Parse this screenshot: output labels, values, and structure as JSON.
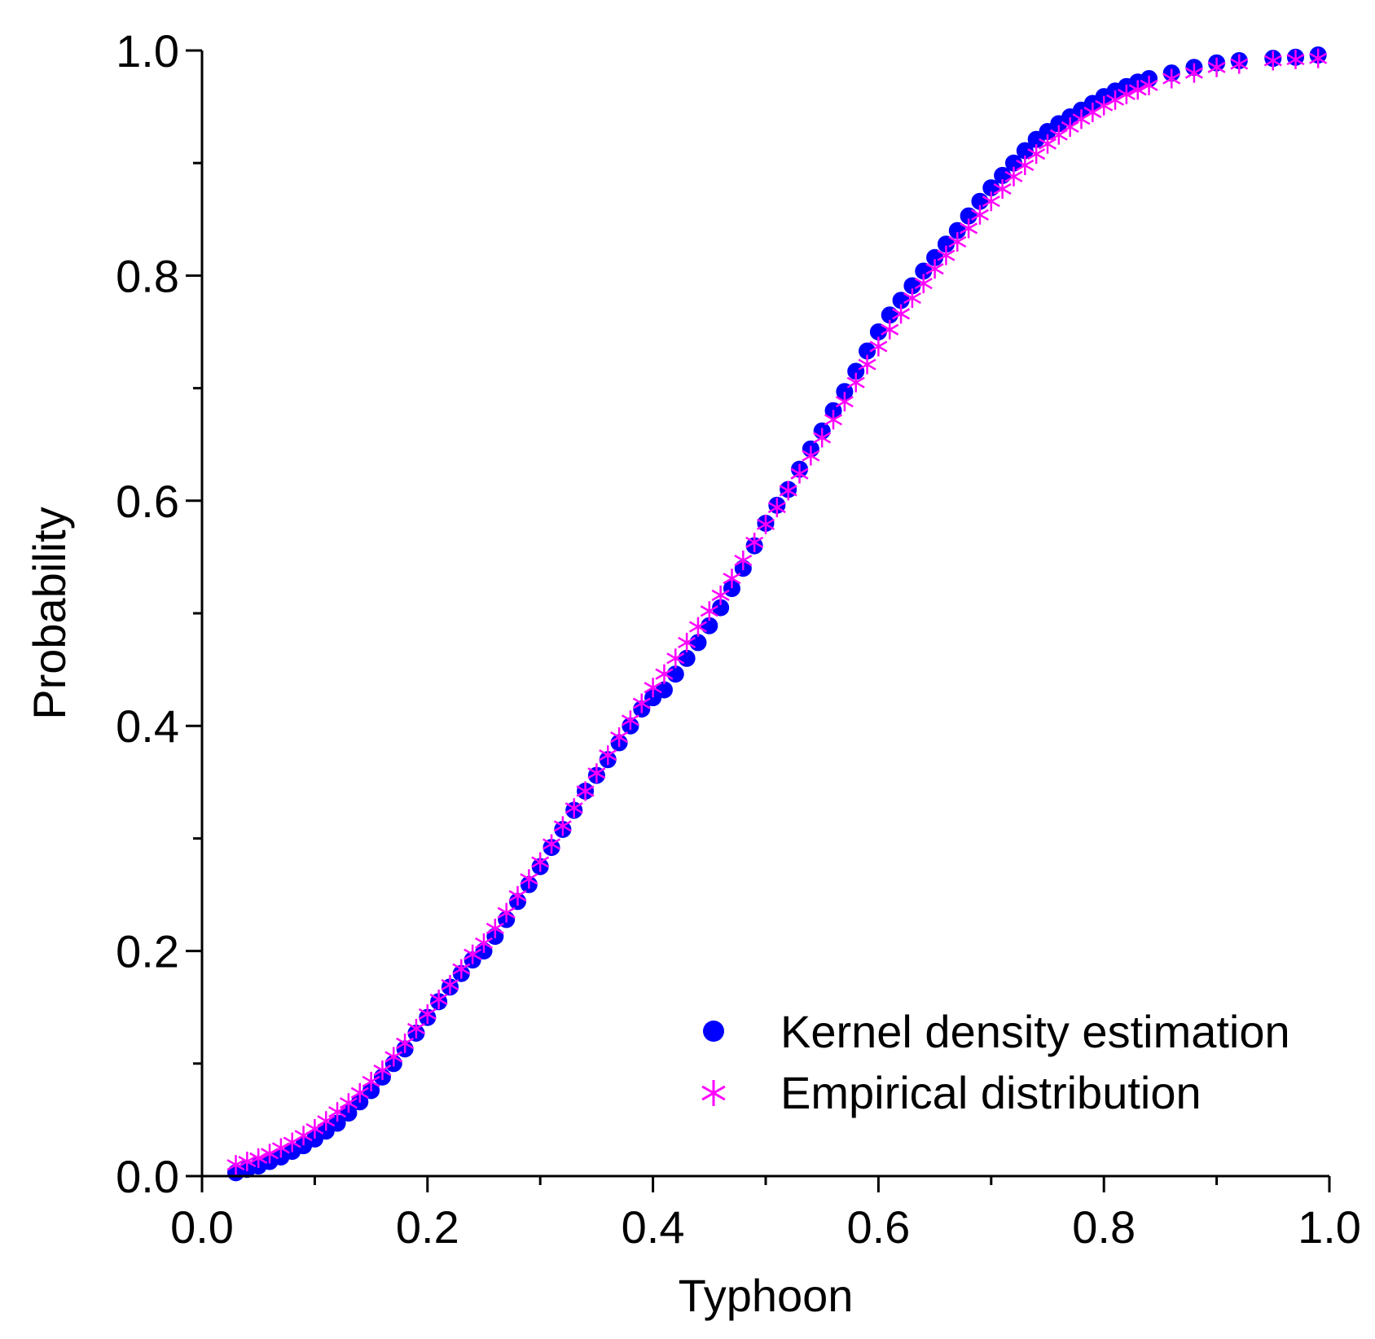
{
  "chart_data": {
    "type": "scatter",
    "title": "",
    "xlabel": "Typhoon",
    "ylabel": "Probability",
    "xlim": [
      0.0,
      1.0
    ],
    "ylim": [
      0.0,
      1.0
    ],
    "xticks": [
      "0.0",
      "0.2",
      "0.4",
      "0.6",
      "0.8",
      "1.0"
    ],
    "yticks": [
      "0.0",
      "0.2",
      "0.4",
      "0.6",
      "0.8",
      "1.0"
    ],
    "grid": false,
    "legend_position": "bottom-right",
    "series": [
      {
        "name": "Kernel density estimation",
        "marker": "circle",
        "color": "#0000ff",
        "points": [
          [
            0.03,
            0.003
          ],
          [
            0.04,
            0.006
          ],
          [
            0.05,
            0.009
          ],
          [
            0.06,
            0.013
          ],
          [
            0.07,
            0.017
          ],
          [
            0.08,
            0.022
          ],
          [
            0.09,
            0.027
          ],
          [
            0.1,
            0.033
          ],
          [
            0.11,
            0.04
          ],
          [
            0.12,
            0.047
          ],
          [
            0.13,
            0.056
          ],
          [
            0.14,
            0.066
          ],
          [
            0.15,
            0.076
          ],
          [
            0.16,
            0.088
          ],
          [
            0.17,
            0.1
          ],
          [
            0.18,
            0.113
          ],
          [
            0.19,
            0.127
          ],
          [
            0.2,
            0.141
          ],
          [
            0.21,
            0.155
          ],
          [
            0.22,
            0.168
          ],
          [
            0.23,
            0.18
          ],
          [
            0.24,
            0.192
          ],
          [
            0.25,
            0.2
          ],
          [
            0.26,
            0.213
          ],
          [
            0.27,
            0.228
          ],
          [
            0.28,
            0.244
          ],
          [
            0.29,
            0.259
          ],
          [
            0.3,
            0.275
          ],
          [
            0.31,
            0.292
          ],
          [
            0.32,
            0.308
          ],
          [
            0.33,
            0.325
          ],
          [
            0.34,
            0.342
          ],
          [
            0.35,
            0.356
          ],
          [
            0.36,
            0.37
          ],
          [
            0.37,
            0.385
          ],
          [
            0.38,
            0.4
          ],
          [
            0.39,
            0.415
          ],
          [
            0.4,
            0.425
          ],
          [
            0.41,
            0.432
          ],
          [
            0.42,
            0.446
          ],
          [
            0.43,
            0.46
          ],
          [
            0.44,
            0.474
          ],
          [
            0.45,
            0.489
          ],
          [
            0.46,
            0.505
          ],
          [
            0.47,
            0.522
          ],
          [
            0.48,
            0.54
          ],
          [
            0.49,
            0.56
          ],
          [
            0.5,
            0.58
          ],
          [
            0.51,
            0.596
          ],
          [
            0.52,
            0.61
          ],
          [
            0.53,
            0.628
          ],
          [
            0.54,
            0.646
          ],
          [
            0.55,
            0.662
          ],
          [
            0.56,
            0.68
          ],
          [
            0.57,
            0.697
          ],
          [
            0.58,
            0.715
          ],
          [
            0.59,
            0.733
          ],
          [
            0.6,
            0.75
          ],
          [
            0.61,
            0.765
          ],
          [
            0.62,
            0.778
          ],
          [
            0.63,
            0.791
          ],
          [
            0.64,
            0.804
          ],
          [
            0.65,
            0.816
          ],
          [
            0.66,
            0.828
          ],
          [
            0.67,
            0.84
          ],
          [
            0.68,
            0.853
          ],
          [
            0.69,
            0.866
          ],
          [
            0.7,
            0.878
          ],
          [
            0.71,
            0.889
          ],
          [
            0.72,
            0.9
          ],
          [
            0.73,
            0.911
          ],
          [
            0.74,
            0.921
          ],
          [
            0.75,
            0.928
          ],
          [
            0.76,
            0.935
          ],
          [
            0.77,
            0.941
          ],
          [
            0.78,
            0.947
          ],
          [
            0.79,
            0.953
          ],
          [
            0.8,
            0.959
          ],
          [
            0.81,
            0.964
          ],
          [
            0.82,
            0.968
          ],
          [
            0.83,
            0.972
          ],
          [
            0.84,
            0.975
          ],
          [
            0.86,
            0.98
          ],
          [
            0.88,
            0.985
          ],
          [
            0.9,
            0.989
          ],
          [
            0.92,
            0.991
          ],
          [
            0.95,
            0.993
          ],
          [
            0.97,
            0.994
          ],
          [
            0.99,
            0.996
          ]
        ]
      },
      {
        "name": "Empirical distribution",
        "marker": "asterisk",
        "color": "#ff00ff",
        "points": [
          [
            0.03,
            0.01
          ],
          [
            0.04,
            0.013
          ],
          [
            0.05,
            0.016
          ],
          [
            0.06,
            0.02
          ],
          [
            0.07,
            0.025
          ],
          [
            0.08,
            0.03
          ],
          [
            0.09,
            0.036
          ],
          [
            0.1,
            0.042
          ],
          [
            0.11,
            0.049
          ],
          [
            0.12,
            0.057
          ],
          [
            0.13,
            0.065
          ],
          [
            0.14,
            0.074
          ],
          [
            0.15,
            0.084
          ],
          [
            0.16,
            0.094
          ],
          [
            0.17,
            0.106
          ],
          [
            0.18,
            0.118
          ],
          [
            0.19,
            0.131
          ],
          [
            0.2,
            0.144
          ],
          [
            0.21,
            0.157
          ],
          [
            0.22,
            0.17
          ],
          [
            0.23,
            0.184
          ],
          [
            0.24,
            0.197
          ],
          [
            0.25,
            0.207
          ],
          [
            0.26,
            0.22
          ],
          [
            0.27,
            0.234
          ],
          [
            0.28,
            0.249
          ],
          [
            0.29,
            0.264
          ],
          [
            0.3,
            0.279
          ],
          [
            0.31,
            0.295
          ],
          [
            0.32,
            0.311
          ],
          [
            0.33,
            0.327
          ],
          [
            0.34,
            0.342
          ],
          [
            0.35,
            0.358
          ],
          [
            0.36,
            0.374
          ],
          [
            0.37,
            0.39
          ],
          [
            0.38,
            0.405
          ],
          [
            0.39,
            0.42
          ],
          [
            0.4,
            0.434
          ],
          [
            0.41,
            0.446
          ],
          [
            0.42,
            0.46
          ],
          [
            0.43,
            0.474
          ],
          [
            0.44,
            0.488
          ],
          [
            0.45,
            0.502
          ],
          [
            0.46,
            0.516
          ],
          [
            0.47,
            0.531
          ],
          [
            0.48,
            0.547
          ],
          [
            0.49,
            0.563
          ],
          [
            0.5,
            0.579
          ],
          [
            0.51,
            0.594
          ],
          [
            0.52,
            0.609
          ],
          [
            0.53,
            0.624
          ],
          [
            0.54,
            0.64
          ],
          [
            0.55,
            0.656
          ],
          [
            0.56,
            0.672
          ],
          [
            0.57,
            0.688
          ],
          [
            0.58,
            0.705
          ],
          [
            0.59,
            0.721
          ],
          [
            0.6,
            0.737
          ],
          [
            0.61,
            0.752
          ],
          [
            0.62,
            0.766
          ],
          [
            0.63,
            0.78
          ],
          [
            0.64,
            0.793
          ],
          [
            0.65,
            0.806
          ],
          [
            0.66,
            0.818
          ],
          [
            0.67,
            0.83
          ],
          [
            0.68,
            0.842
          ],
          [
            0.69,
            0.854
          ],
          [
            0.7,
            0.866
          ],
          [
            0.71,
            0.877
          ],
          [
            0.72,
            0.888
          ],
          [
            0.73,
            0.898
          ],
          [
            0.74,
            0.908
          ],
          [
            0.75,
            0.917
          ],
          [
            0.76,
            0.925
          ],
          [
            0.77,
            0.932
          ],
          [
            0.78,
            0.939
          ],
          [
            0.79,
            0.945
          ],
          [
            0.8,
            0.951
          ],
          [
            0.81,
            0.956
          ],
          [
            0.82,
            0.961
          ],
          [
            0.83,
            0.965
          ],
          [
            0.84,
            0.969
          ],
          [
            0.86,
            0.975
          ],
          [
            0.88,
            0.98
          ],
          [
            0.9,
            0.985
          ],
          [
            0.92,
            0.988
          ],
          [
            0.95,
            0.991
          ],
          [
            0.97,
            0.992
          ],
          [
            0.99,
            0.993
          ]
        ]
      }
    ]
  }
}
